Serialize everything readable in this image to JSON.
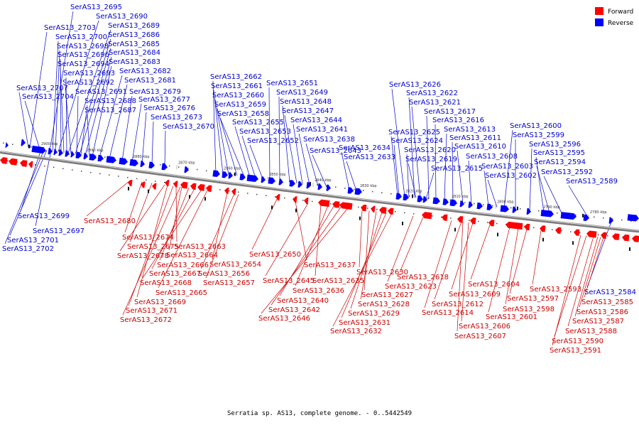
{
  "caption": "Serratia sp. AS13, complete genome. - 0..5442549",
  "legend": [
    {
      "label": "Forward",
      "color": "#ff0000"
    },
    {
      "label": "Reverse",
      "color": "#0000ff"
    }
  ],
  "colors": {
    "forward_label": "#cc0000",
    "reverse_label": "#0000cc",
    "backbone": "#808080"
  },
  "ticks": [
    "2900 kbp",
    "2890 kbp",
    "2880 kbp",
    "2870 kbp",
    "2860 kbp",
    "2850 kbp",
    "2840 kbp",
    "2830 kbp",
    "2820 kbp",
    "2810 kbp",
    "2800 kbp",
    "2790 kbp",
    "2780 kbp"
  ],
  "reverse_labels_top": [
    "SerAS13_2695",
    "SerAS13_2690",
    "SerAS13_2703",
    "SerAS13_2689",
    "SerAS13_2700",
    "SerAS13_2686",
    "SerAS13_2698",
    "SerAS13_2685",
    "SerAS13_2696",
    "SerAS13_2684",
    "SerAS13_2694",
    "SerAS13_2683",
    "SerAS13_2693",
    "SerAS13_2682",
    "SerAS13_2692",
    "SerAS13_2681",
    "SerAS13_2707",
    "SerAS13_2691",
    "SerAS13_2679",
    "SerAS13_2704",
    "SerAS13_2688",
    "SerAS13_2677",
    "SerAS13_2687",
    "SerAS13_2676",
    "SerAS13_2673",
    "SerAS13_2670",
    "SerAS13_2662",
    "SerAS13_2661",
    "SerAS13_2660",
    "SerAS13_2659",
    "SerAS13_2658",
    "SerAS13_2655",
    "SerAS13_2653",
    "SerAS13_2652",
    "SerAS13_2651",
    "SerAS13_2649",
    "SerAS13_2648",
    "SerAS13_2647",
    "SerAS13_2644",
    "SerAS13_2641",
    "SerAS13_2638",
    "SerAS13_2643",
    "SerAS13_2634",
    "SerAS13_2633",
    "SerAS13_2626",
    "SerAS13_2622",
    "SerAS13_2621",
    "SerAS13_2617",
    "SerAS13_2616",
    "SerAS13_2613",
    "SerAS13_2625",
    "SerAS13_2611",
    "SerAS13_2624",
    "SerAS13_2610",
    "SerAS13_2620",
    "SerAS13_2619",
    "SerAS13_2608",
    "SerAS13_2615",
    "SerAS13_2603",
    "SerAS13_2602",
    "SerAS13_2600",
    "SerAS13_2599",
    "SerAS13_2596",
    "SerAS13_2595",
    "SerAS13_2594",
    "SerAS13_2592",
    "SerAS13_2589"
  ],
  "reverse_labels_bottom": [
    "SerAS13_2699",
    "SerAS13_2697",
    "SerAS13_2701",
    "SerAS13_2702",
    "SerAS13_2584"
  ],
  "forward_labels": [
    "SerAS13_2680",
    "SerAS13_2674",
    "SerAS13_2675",
    "SerAS13_2678",
    "SerAS13_2663",
    "SerAS13_2664",
    "SerAS13_2666",
    "SerAS13_2667",
    "SerAS13_2668",
    "SerAS13_2665",
    "SerAS13_2669",
    "SerAS13_2671",
    "SerAS13_2672",
    "SerAS13_2654",
    "SerAS13_2656",
    "SerAS13_2657",
    "SerAS13_2650",
    "SerAS13_2637",
    "SerAS13_2645",
    "SerAS13_2635",
    "SerAS13_2636",
    "SerAS13_2640",
    "SerAS13_2642",
    "SerAS13_2646",
    "SerAS13_2630",
    "SerAS13_2627",
    "SerAS13_2628",
    "SerAS13_2629",
    "SerAS13_2631",
    "SerAS13_2632",
    "SerAS13_2618",
    "SerAS13_2623",
    "SerAS13_2604",
    "SerAS13_2609",
    "SerAS13_2612",
    "SerAS13_2614",
    "SerAS13_2606",
    "SerAS13_2607",
    "SerAS13_2601",
    "SerAS13_2598",
    "SerAS13_2597",
    "SerAS13_2593",
    "SerAS13_2585",
    "SerAS13_2586",
    "SerAS13_2587",
    "SerAS13_2588",
    "SerAS13_2590",
    "SerAS13_2591"
  ]
}
